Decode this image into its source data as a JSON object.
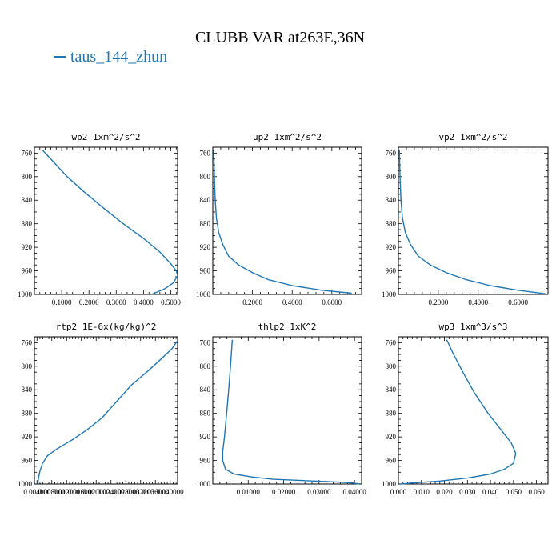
{
  "title": "CLUBB VAR at263E,36N",
  "legend": {
    "label": "taus_144_zhun",
    "color": "#1f77b4"
  },
  "chart_data": [
    {
      "type": "line",
      "title": "wp2  1xm^2/s^2",
      "xlim": [
        0.0,
        0.525
      ],
      "ylim": [
        1000,
        750
      ],
      "yticks": [
        760,
        800,
        840,
        880,
        920,
        960,
        1000
      ],
      "xticks": [
        0.1,
        0.2,
        0.3,
        0.4,
        0.5
      ],
      "xticklabels": [
        "0.1000",
        "0.2000",
        "0.3000",
        "0.4000",
        "0.5000"
      ],
      "series": [
        {
          "color": "#1f77b4",
          "x": [
            0.03,
            0.05,
            0.08,
            0.12,
            0.18,
            0.25,
            0.32,
            0.4,
            0.46,
            0.5,
            0.52,
            0.525,
            0.51,
            0.48,
            0.43
          ],
          "y": [
            755,
            765,
            780,
            800,
            825,
            852,
            878,
            905,
            928,
            948,
            960,
            968,
            980,
            990,
            1000
          ]
        }
      ]
    },
    {
      "type": "line",
      "title": "up2  1xm^2/s^2",
      "xlim": [
        0.0,
        0.75
      ],
      "ylim": [
        1000,
        750
      ],
      "yticks": [
        760,
        800,
        840,
        880,
        920,
        960,
        1000
      ],
      "xticks": [
        0.2,
        0.4,
        0.6
      ],
      "xticklabels": [
        "0.2000",
        "0.4000",
        "0.6000"
      ],
      "series": [
        {
          "color": "#1f77b4",
          "x": [
            0.005,
            0.008,
            0.012,
            0.018,
            0.03,
            0.05,
            0.08,
            0.13,
            0.2,
            0.28,
            0.4,
            0.55,
            0.7
          ],
          "y": [
            755,
            800,
            840,
            870,
            895,
            915,
            935,
            950,
            963,
            975,
            985,
            993,
            998
          ]
        }
      ]
    },
    {
      "type": "line",
      "title": "vp2  1xm^2/s^2",
      "xlim": [
        0.0,
        0.75
      ],
      "ylim": [
        1000,
        750
      ],
      "yticks": [
        760,
        800,
        840,
        880,
        920,
        960,
        1000
      ],
      "xticks": [
        0.2,
        0.4,
        0.6
      ],
      "xticklabels": [
        "0.2000",
        "0.4000",
        "0.6000"
      ],
      "series": [
        {
          "color": "#1f77b4",
          "x": [
            0.005,
            0.008,
            0.013,
            0.02,
            0.035,
            0.06,
            0.1,
            0.16,
            0.24,
            0.34,
            0.46,
            0.6,
            0.74
          ],
          "y": [
            755,
            800,
            840,
            870,
            895,
            915,
            935,
            950,
            963,
            975,
            985,
            993,
            999
          ]
        }
      ]
    },
    {
      "type": "line",
      "title": "rtp2  1E-6x(kg/kg)^2",
      "xlim": [
        0.0033,
        0.042
      ],
      "ylim": [
        1000,
        750
      ],
      "yticks": [
        760,
        800,
        840,
        880,
        920,
        960,
        1000
      ],
      "xticks": [
        0.004,
        0.008,
        0.012,
        0.016,
        0.02,
        0.024,
        0.028,
        0.032,
        0.036,
        0.04
      ],
      "xticklabels": [
        "0.004000",
        "0.008000",
        "0.012000",
        "0.016000",
        "0.020000",
        "0.024000",
        "0.028000",
        "0.032000",
        "0.036000",
        "0.040000"
      ],
      "series": [
        {
          "color": "#1f77b4",
          "x": [
            0.0042,
            0.0044,
            0.0048,
            0.0055,
            0.0068,
            0.0095,
            0.0135,
            0.0175,
            0.0215,
            0.0255,
            0.0295,
            0.034,
            0.038,
            0.0405,
            0.0418
          ],
          "y": [
            1000,
            990,
            978,
            965,
            952,
            940,
            925,
            908,
            888,
            860,
            832,
            808,
            785,
            770,
            758
          ]
        }
      ]
    },
    {
      "type": "line",
      "title": "thlp2  1xK^2",
      "xlim": [
        0.0,
        0.042
      ],
      "ylim": [
        1000,
        750
      ],
      "yticks": [
        760,
        800,
        840,
        880,
        920,
        960,
        1000
      ],
      "xticks": [
        0.01,
        0.02,
        0.03,
        0.04
      ],
      "xticklabels": [
        "0.01000",
        "0.02000",
        "0.03000",
        "0.04000"
      ],
      "series": [
        {
          "color": "#1f77b4",
          "x": [
            0.0055,
            0.005,
            0.0045,
            0.0039,
            0.0033,
            0.0028,
            0.0028,
            0.0036,
            0.006,
            0.011,
            0.017,
            0.025,
            0.033,
            0.039,
            0.0415
          ],
          "y": [
            755,
            800,
            840,
            880,
            920,
            945,
            960,
            975,
            983,
            988,
            992,
            994,
            996,
            998,
            1000
          ]
        }
      ]
    },
    {
      "type": "line",
      "title": "wp3  1xm^3/s^3",
      "xlim": [
        0.0,
        0.065
      ],
      "ylim": [
        1000,
        750
      ],
      "yticks": [
        760,
        800,
        840,
        880,
        920,
        960,
        1000
      ],
      "xticks": [
        0.0,
        0.01,
        0.02,
        0.03,
        0.04,
        0.05,
        0.06
      ],
      "xticklabels": [
        "0.000",
        "0.010",
        "0.020",
        "0.030",
        "0.040",
        "0.050",
        "0.060"
      ],
      "series": [
        {
          "color": "#1f77b4",
          "x": [
            0.021,
            0.024,
            0.028,
            0.033,
            0.039,
            0.045,
            0.049,
            0.051,
            0.05,
            0.046,
            0.04,
            0.03,
            0.018,
            0.007,
            0.001
          ],
          "y": [
            755,
            780,
            810,
            845,
            880,
            910,
            930,
            948,
            965,
            975,
            983,
            990,
            995,
            998,
            1000
          ]
        }
      ]
    }
  ]
}
